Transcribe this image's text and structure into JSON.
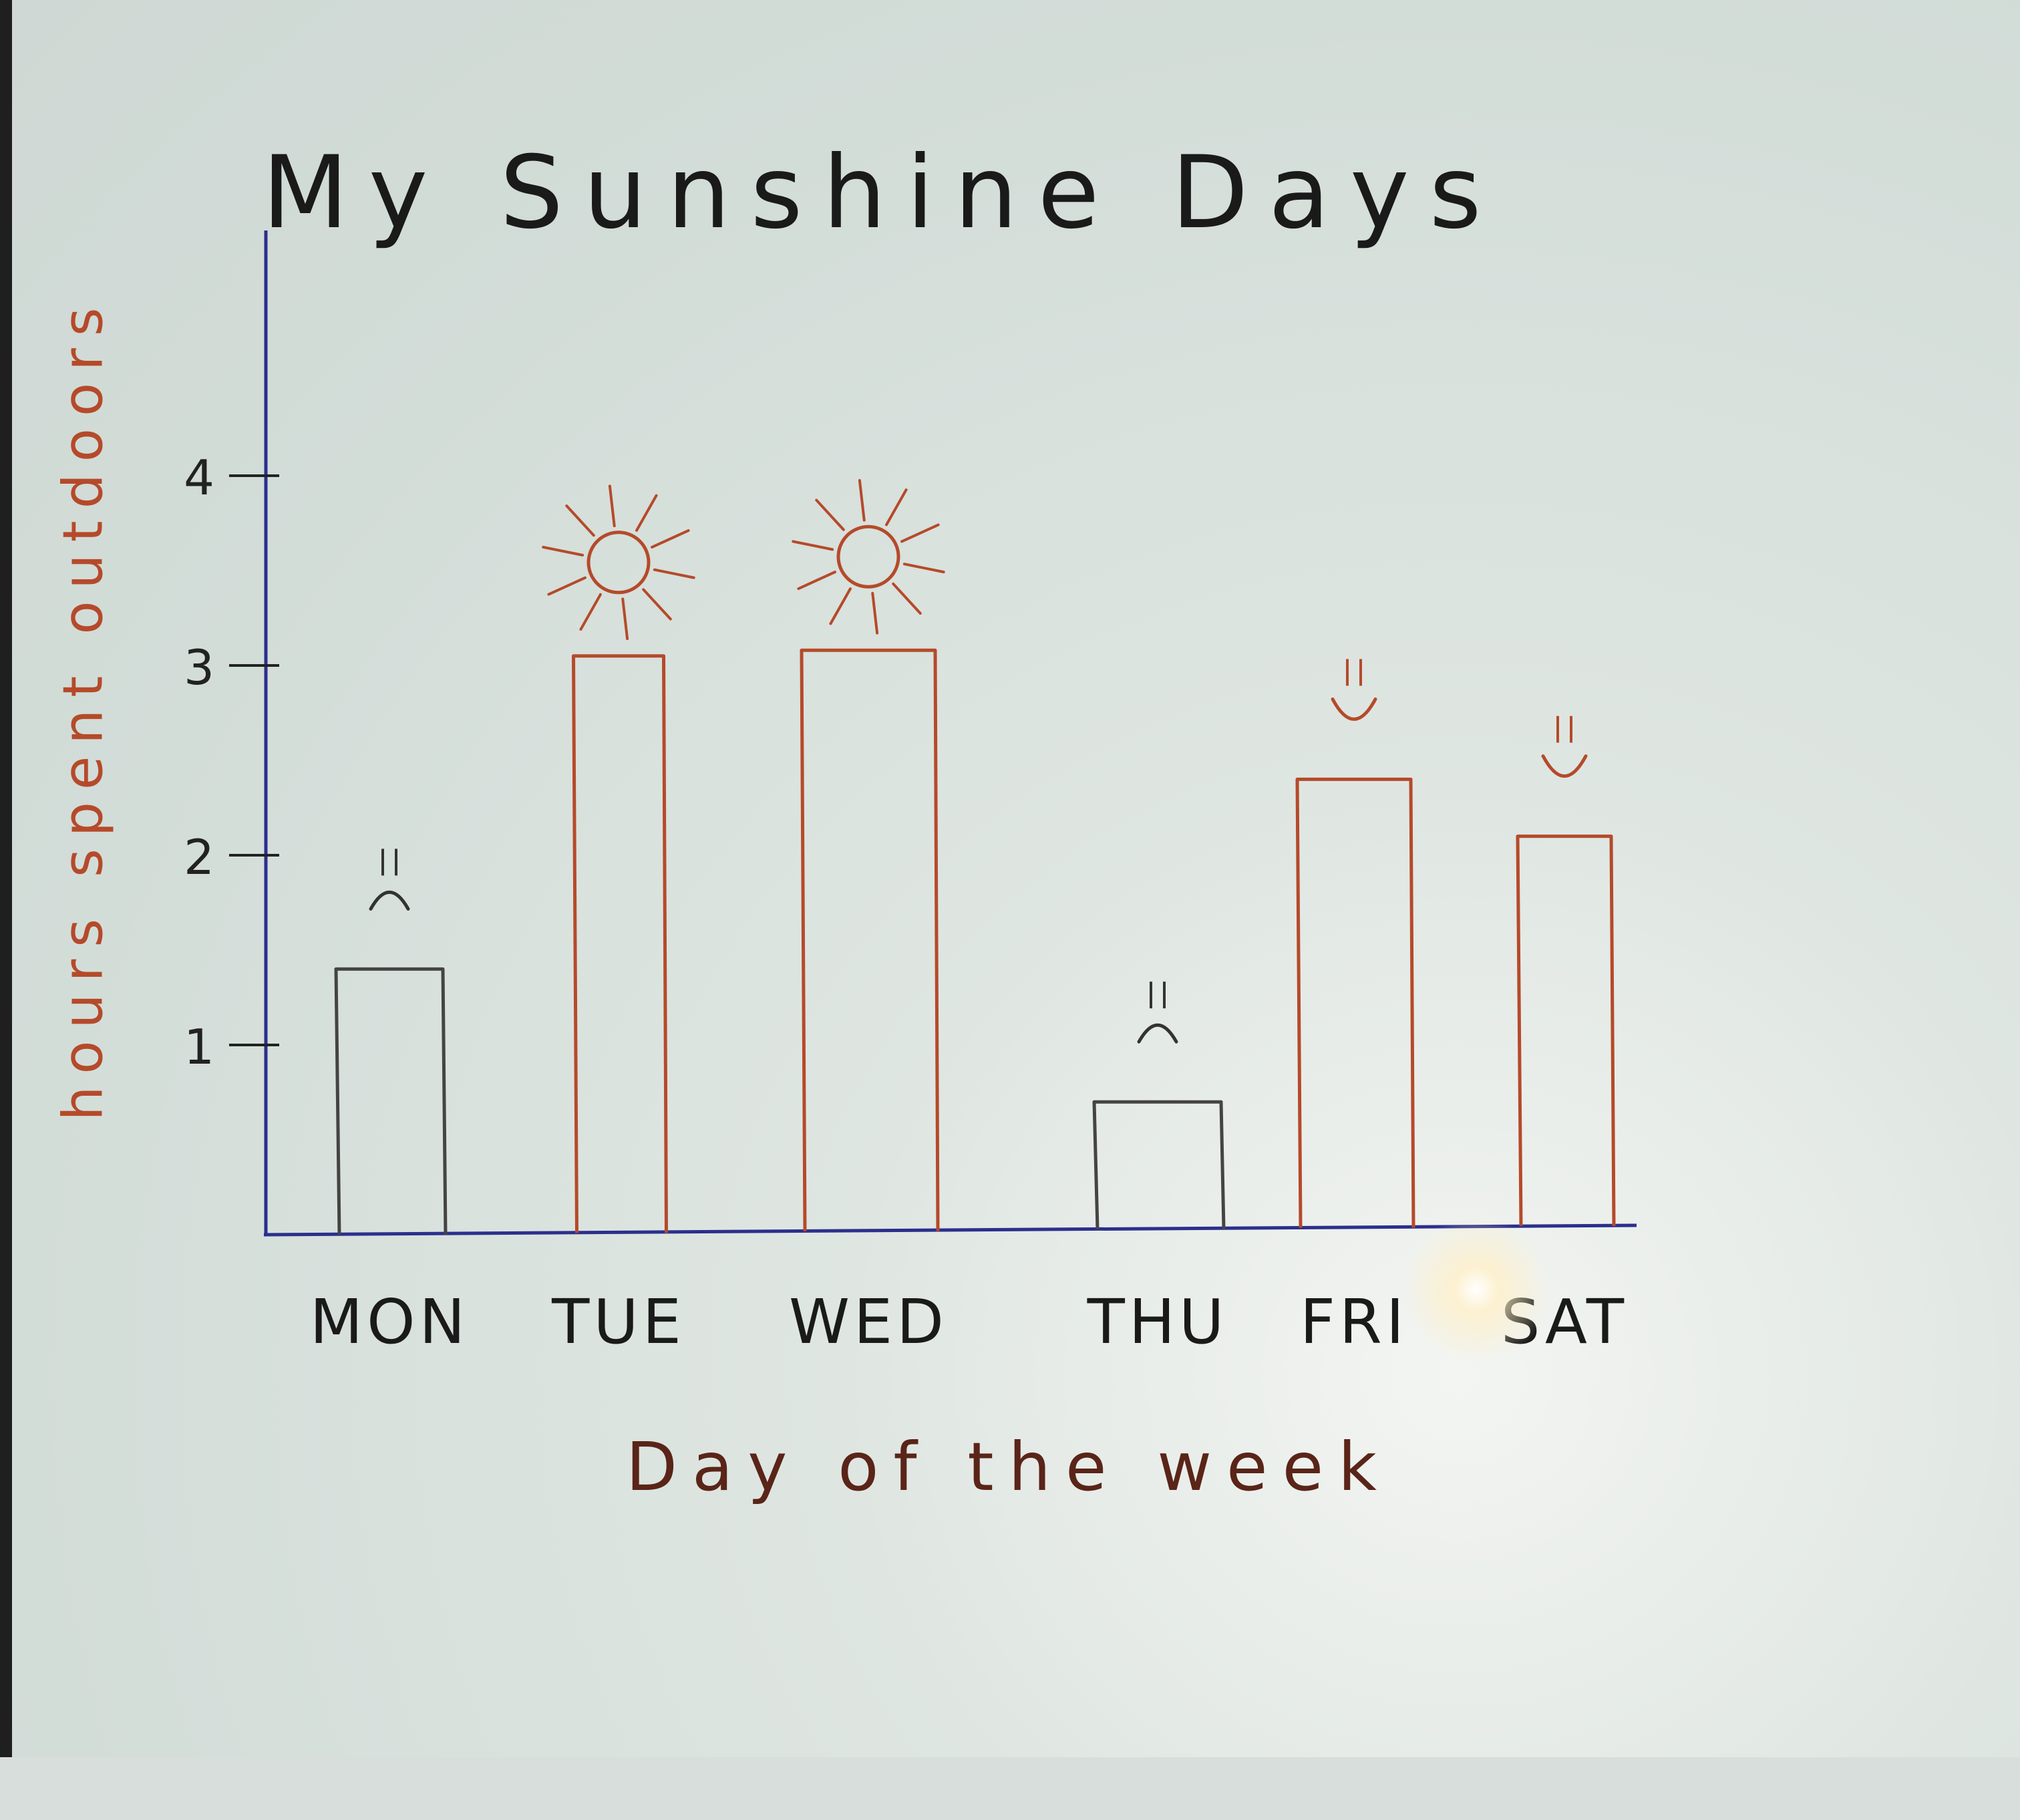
{
  "chart_data": {
    "type": "bar",
    "title": "My Sunshine Days",
    "xlabel": "Day of the week",
    "ylabel": "hours spent outdoors",
    "categories": [
      "MON",
      "TUE",
      "WED",
      "THU",
      "FRI",
      "SAT"
    ],
    "values": [
      1.4,
      3.05,
      3.08,
      0.7,
      2.4,
      2.1
    ],
    "bar_colors": [
      "#444444",
      "#b54a2a",
      "#b54a2a",
      "#444444",
      "#b54a2a",
      "#b54a2a"
    ],
    "markers": [
      "sad-face",
      "sun",
      "sun",
      "sad-face",
      "happy-face",
      "happy-face"
    ],
    "yticks": [
      "1",
      "2",
      "3",
      "4"
    ],
    "ylim": [
      0,
      4.6
    ],
    "grid": false,
    "legend": "none"
  },
  "colors": {
    "axis": "#2b2f8c",
    "ink": "#1a1a1a",
    "red_ink": "#b54a2a",
    "label_ink": "#5a2418",
    "paper": "#d6dfdb"
  }
}
